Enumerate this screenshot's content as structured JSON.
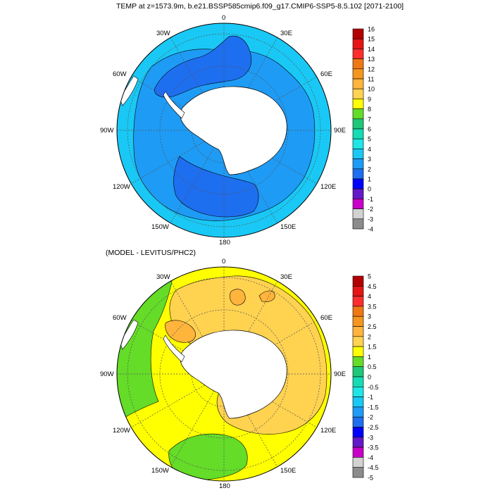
{
  "titles": {
    "top": "TEMP at z=1573.9m, b.e21.BSSP585cmip6.f09_g17.CMIP6-SSP5-8.5.102 [2071-2100]",
    "bottom": "(MODEL - LEVITUS/PHC2)"
  },
  "longitude_labels": [
    "0",
    "30E",
    "60E",
    "90E",
    "120E",
    "150E",
    "180",
    "150W",
    "120W",
    "90W",
    "60W",
    "30W"
  ],
  "colorbar_top": {
    "labels": [
      "16",
      "15",
      "14",
      "13",
      "12",
      "11",
      "10",
      "9",
      "8",
      "7",
      "6",
      "5",
      "4",
      "3",
      "2",
      "1",
      "0",
      "-1",
      "-2",
      "-3",
      "-4"
    ],
    "colors": [
      "#b40000",
      "#e61414",
      "#ff2d2d",
      "#f07814",
      "#f5961e",
      "#ffb43c",
      "#ffd250",
      "#ffff00",
      "#64dc28",
      "#1ec878",
      "#14dcb4",
      "#1ee6e6",
      "#19c8f5",
      "#1e9bf5",
      "#1e6ef0",
      "#0000ff",
      "#6419c8",
      "#c800c8",
      "#d2d2d2",
      "#8c8c8c"
    ]
  },
  "colorbar_bottom": {
    "labels": [
      "5",
      "4.5",
      "4",
      "3.5",
      "3",
      "2.5",
      "2",
      "1.5",
      "1",
      "0.5",
      "0",
      "-0.5",
      "-1",
      "-1.5",
      "-2",
      "-2.5",
      "-3",
      "-3.5",
      "-4",
      "-4.5",
      "-5"
    ],
    "colors": [
      "#b40000",
      "#e61414",
      "#ff2d2d",
      "#f07814",
      "#f5961e",
      "#ffb43c",
      "#ffd250",
      "#ffff00",
      "#64dc28",
      "#1ec878",
      "#14dcb4",
      "#1ee6e6",
      "#19c8f5",
      "#1e9bf5",
      "#1e6ef0",
      "#0000ff",
      "#6419c8",
      "#c800c8",
      "#d2d2d2",
      "#8c8c8c"
    ]
  },
  "map_colors": {
    "top_background": "#19c8f5",
    "top_mid": "#1e9bf5",
    "top_dark": "#1e6ef0",
    "bottom_background": "#ffd250",
    "bottom_yellow": "#ffff00",
    "bottom_green": "#64dc28",
    "bottom_orange": "#ffb43c"
  }
}
